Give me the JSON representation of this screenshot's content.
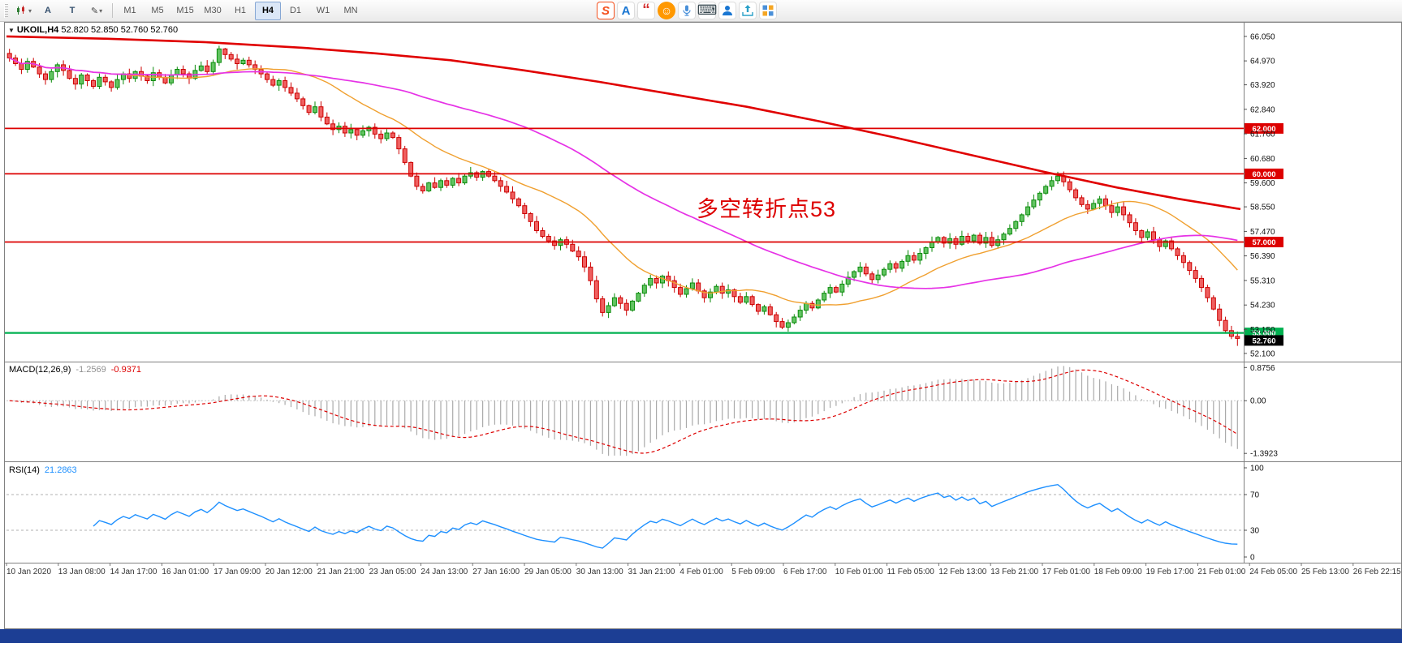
{
  "icons": {
    "symbol_dropdown": "▼",
    "dropdown": "▾",
    "text_tool": "A",
    "cursor_tool": "T",
    "pen_tool": "✎"
  },
  "toolbar": {
    "timeframes": [
      "M1",
      "M5",
      "M15",
      "M30",
      "H1",
      "H4",
      "D1",
      "W1",
      "MN"
    ],
    "active_timeframe": "H4",
    "ime_icons": [
      {
        "name": "sogou-logo-icon",
        "glyph": "S",
        "type": "glyph",
        "cls": "ime-sogou"
      },
      {
        "name": "font-style-icon",
        "glyph": "A",
        "type": "glyph",
        "cls": "ime-font"
      },
      {
        "name": "ink-quote-icon",
        "glyph": "“",
        "type": "glyph",
        "cls": "ime-ink"
      },
      {
        "name": "emoji-icon",
        "glyph": "☺",
        "type": "glyph",
        "cls": "ime-emoji"
      },
      {
        "name": "voice-icon",
        "glyph": "",
        "type": "svg",
        "cls": ""
      },
      {
        "name": "keyboard-icon",
        "glyph": "⌨",
        "type": "glyph",
        "cls": "ime-kbd"
      },
      {
        "name": "profile-icon",
        "glyph": "",
        "type": "svg",
        "cls": ""
      },
      {
        "name": "share-icon",
        "glyph": "",
        "type": "svg",
        "cls": ""
      },
      {
        "name": "toolbox-icon",
        "glyph": "",
        "type": "svg",
        "cls": ""
      }
    ]
  },
  "chart": {
    "symbol": "UKOIL,H4",
    "ohlc_text": "52.820 52.850 52.760 52.760",
    "annotation": "多空转折点53",
    "macd": {
      "name": "MACD(12,26,9)",
      "value": "-1.2569",
      "signal": "-0.9371"
    },
    "rsi": {
      "name": "RSI(14)",
      "value": "21.2863"
    }
  },
  "chart_data": {
    "type": "candlestick",
    "symbol": "UKOIL",
    "timeframe": "H4",
    "price_axis_ticks": [
      "66.050",
      "64.970",
      "63.920",
      "62.840",
      "61.760",
      "60.680",
      "59.600",
      "58.550",
      "57.470",
      "56.390",
      "55.310",
      "54.230",
      "53.150",
      "52.100"
    ],
    "time_axis_ticks": [
      "10 Jan 2020",
      "13 Jan 08:00",
      "14 Jan 17:00",
      "16 Jan 01:00",
      "17 Jan 09:00",
      "20 Jan 12:00",
      "21 Jan 21:00",
      "23 Jan 05:00",
      "24 Jan 13:00",
      "27 Jan 16:00",
      "29 Jan 05:00",
      "30 Jan 13:00",
      "31 Jan 21:00",
      "4 Feb 01:00",
      "5 Feb 09:00",
      "6 Feb 17:00",
      "10 Feb 01:00",
      "11 Feb 05:00",
      "12 Feb 13:00",
      "13 Feb 21:00",
      "17 Feb 01:00",
      "18 Feb 09:00",
      "19 Feb 17:00",
      "21 Feb 01:00",
      "24 Feb 05:00",
      "25 Feb 13:00",
      "26 Feb 22:15"
    ],
    "levels": [
      {
        "price": 62.0,
        "label": "62.000",
        "color": "#dd0000"
      },
      {
        "price": 60.0,
        "label": "60.000",
        "color": "#dd0000"
      },
      {
        "price": 57.0,
        "label": "57.000",
        "color": "#dd0000"
      },
      {
        "price": 53.0,
        "label": "53.000",
        "color": "#00b050"
      }
    ],
    "current_price": {
      "price": 52.76,
      "label": "52.760",
      "color": "#000000"
    },
    "macd_axis_ticks": [
      {
        "label": "0.8756",
        "value": 0.8756
      },
      {
        "label": "0.00",
        "value": 0
      },
      {
        "label": "-1.3923",
        "value": -1.3923
      }
    ],
    "rsi_axis_ticks": [
      {
        "label": "100",
        "value": 100
      },
      {
        "label": "70",
        "value": 70
      },
      {
        "label": "30",
        "value": 30
      },
      {
        "label": "0",
        "value": 0
      }
    ],
    "rsi_dashed_levels": [
      70,
      30
    ],
    "candles": {
      "first_open": 65.3,
      "closes": [
        65.1,
        64.85,
        64.6,
        64.95,
        64.7,
        64.4,
        64.15,
        64.5,
        64.8,
        64.55,
        64.2,
        63.95,
        64.35,
        64.1,
        63.85,
        64.25,
        64.05,
        63.8,
        64.15,
        64.4,
        64.2,
        64.5,
        64.3,
        64.1,
        64.45,
        64.25,
        64.0,
        64.35,
        64.6,
        64.4,
        64.2,
        64.55,
        64.75,
        64.5,
        64.9,
        65.5,
        65.25,
        65.05,
        64.85,
        65.0,
        64.8,
        64.6,
        64.4,
        64.15,
        63.9,
        64.1,
        63.8,
        63.55,
        63.3,
        63.0,
        62.7,
        62.95,
        62.5,
        62.2,
        61.95,
        62.1,
        61.8,
        61.95,
        61.7,
        61.9,
        62.05,
        61.75,
        61.55,
        61.8,
        61.6,
        61.1,
        60.5,
        59.9,
        59.45,
        59.25,
        59.6,
        59.4,
        59.7,
        59.5,
        59.8,
        59.6,
        59.9,
        60.05,
        59.85,
        60.1,
        59.9,
        59.7,
        59.45,
        59.2,
        58.9,
        58.6,
        58.25,
        57.9,
        57.5,
        57.25,
        57.05,
        56.85,
        57.1,
        56.9,
        56.6,
        56.35,
        55.9,
        55.3,
        54.5,
        53.9,
        54.2,
        54.55,
        54.3,
        54.0,
        54.4,
        54.75,
        55.1,
        55.4,
        55.2,
        55.5,
        55.3,
        55.0,
        54.7,
        54.95,
        55.2,
        54.85,
        54.55,
        54.8,
        55.05,
        54.75,
        54.9,
        54.6,
        54.35,
        54.6,
        54.25,
        53.95,
        54.15,
        53.8,
        53.5,
        53.25,
        53.45,
        53.7,
        54.0,
        54.3,
        54.1,
        54.45,
        54.75,
        55.0,
        54.8,
        55.15,
        55.45,
        55.7,
        55.9,
        55.6,
        55.35,
        55.55,
        55.8,
        56.05,
        55.85,
        56.15,
        56.4,
        56.2,
        56.5,
        56.75,
        57.0,
        57.2,
        56.95,
        57.15,
        56.9,
        57.25,
        57.05,
        57.3,
        56.95,
        57.2,
        56.85,
        57.1,
        57.35,
        57.6,
        57.9,
        58.2,
        58.55,
        58.85,
        59.15,
        59.45,
        59.7,
        59.9,
        59.65,
        59.3,
        58.95,
        58.65,
        58.45,
        58.7,
        58.9,
        58.6,
        58.3,
        58.55,
        58.2,
        57.85,
        57.5,
        57.2,
        57.45,
        57.1,
        56.8,
        57.05,
        56.7,
        56.4,
        56.1,
        55.75,
        55.4,
        55.0,
        54.55,
        54.05,
        53.55,
        53.1,
        52.85,
        52.76
      ]
    },
    "moving_averages": {
      "fast_period": 20,
      "fast_color": "#f0a030",
      "mid_period": 60,
      "mid_color": "#e632e6",
      "slow_color": "#e00000",
      "slow_points": [
        [
          0,
          66.05
        ],
        [
          0.08,
          65.95
        ],
        [
          0.16,
          65.8
        ],
        [
          0.24,
          65.55
        ],
        [
          0.3,
          65.3
        ],
        [
          0.36,
          65.0
        ],
        [
          0.42,
          64.55
        ],
        [
          0.48,
          64.05
        ],
        [
          0.54,
          63.5
        ],
        [
          0.6,
          62.95
        ],
        [
          0.66,
          62.3
        ],
        [
          0.72,
          61.6
        ],
        [
          0.78,
          60.85
        ],
        [
          0.84,
          60.1
        ],
        [
          0.9,
          59.4
        ],
        [
          0.95,
          58.9
        ],
        [
          1.0,
          58.45
        ]
      ]
    },
    "macd_params": {
      "fast": 12,
      "slow": 26,
      "signal": 9
    },
    "rsi_period": 14
  },
  "colors": {
    "up_stroke": "#0a8a0a",
    "up_fill": "#62c462",
    "down_stroke": "#cc0000",
    "down_fill": "#ef6060",
    "macd_hist": "#aaaaaa",
    "macd_signal": "#dd0000",
    "rsi_line": "#1e90ff",
    "annotation": "#dd0000",
    "status_bar": "#1c3e94"
  }
}
